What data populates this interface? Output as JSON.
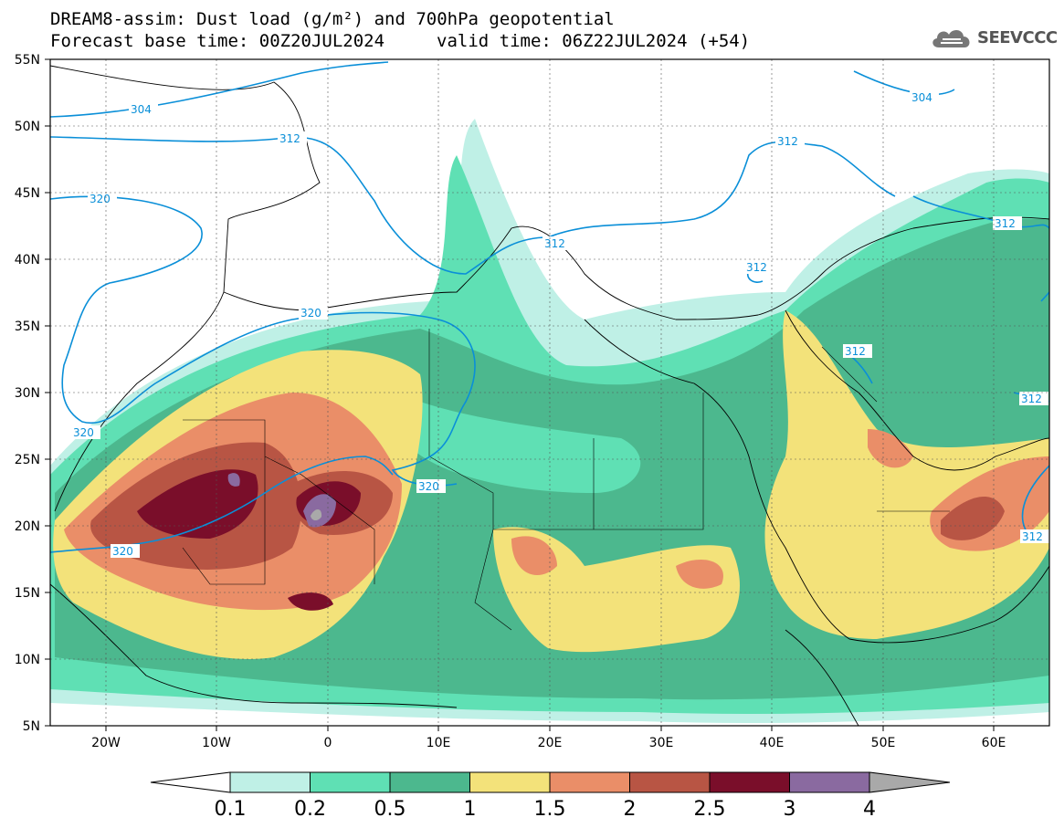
{
  "header": {
    "title_line1": "DREAM8-assim: Dust load (g/m²) and 700hPa geopotential",
    "title_line2": "Forecast base time: 00Z20JUL2024",
    "valid_time": "valid time: 06Z22JUL2024 (+54)",
    "logo_text": "SEEVCCC",
    "logo_icon": "cloud-icon"
  },
  "axes": {
    "lat_labels": [
      "55N",
      "50N",
      "45N",
      "40N",
      "35N",
      "30N",
      "25N",
      "20N",
      "15N",
      "10N",
      "5N"
    ],
    "lon_labels": [
      "20W",
      "10W",
      "0",
      "10E",
      "20E",
      "30E",
      "40E",
      "50E",
      "60E"
    ]
  },
  "contour_labels": {
    "c304a": "304",
    "c304b": "304",
    "c312a": "312",
    "c312b": "312",
    "c312c": "312",
    "c312d": "312",
    "c312e": "312",
    "c312f": "312",
    "c312g": "312",
    "c312h": "312",
    "c320a": "320",
    "c320b": "320",
    "c320c": "320",
    "c320d": "320",
    "c320e": "320"
  },
  "colorbar": {
    "levels": [
      "0.1",
      "0.2",
      "0.5",
      "1",
      "1.5",
      "2",
      "2.5",
      "3",
      "4"
    ],
    "colors": [
      "#bff0e6",
      "#5fe0b4",
      "#4cb88e",
      "#f3e27a",
      "#ea8e68",
      "#b85544",
      "#7a0e2a",
      "#8a6aa0"
    ],
    "under_color": "#ffffff",
    "over_color": "#a9a9a9"
  },
  "legend_meaning": {
    "contour_color": "#0a8fd8"
  }
}
